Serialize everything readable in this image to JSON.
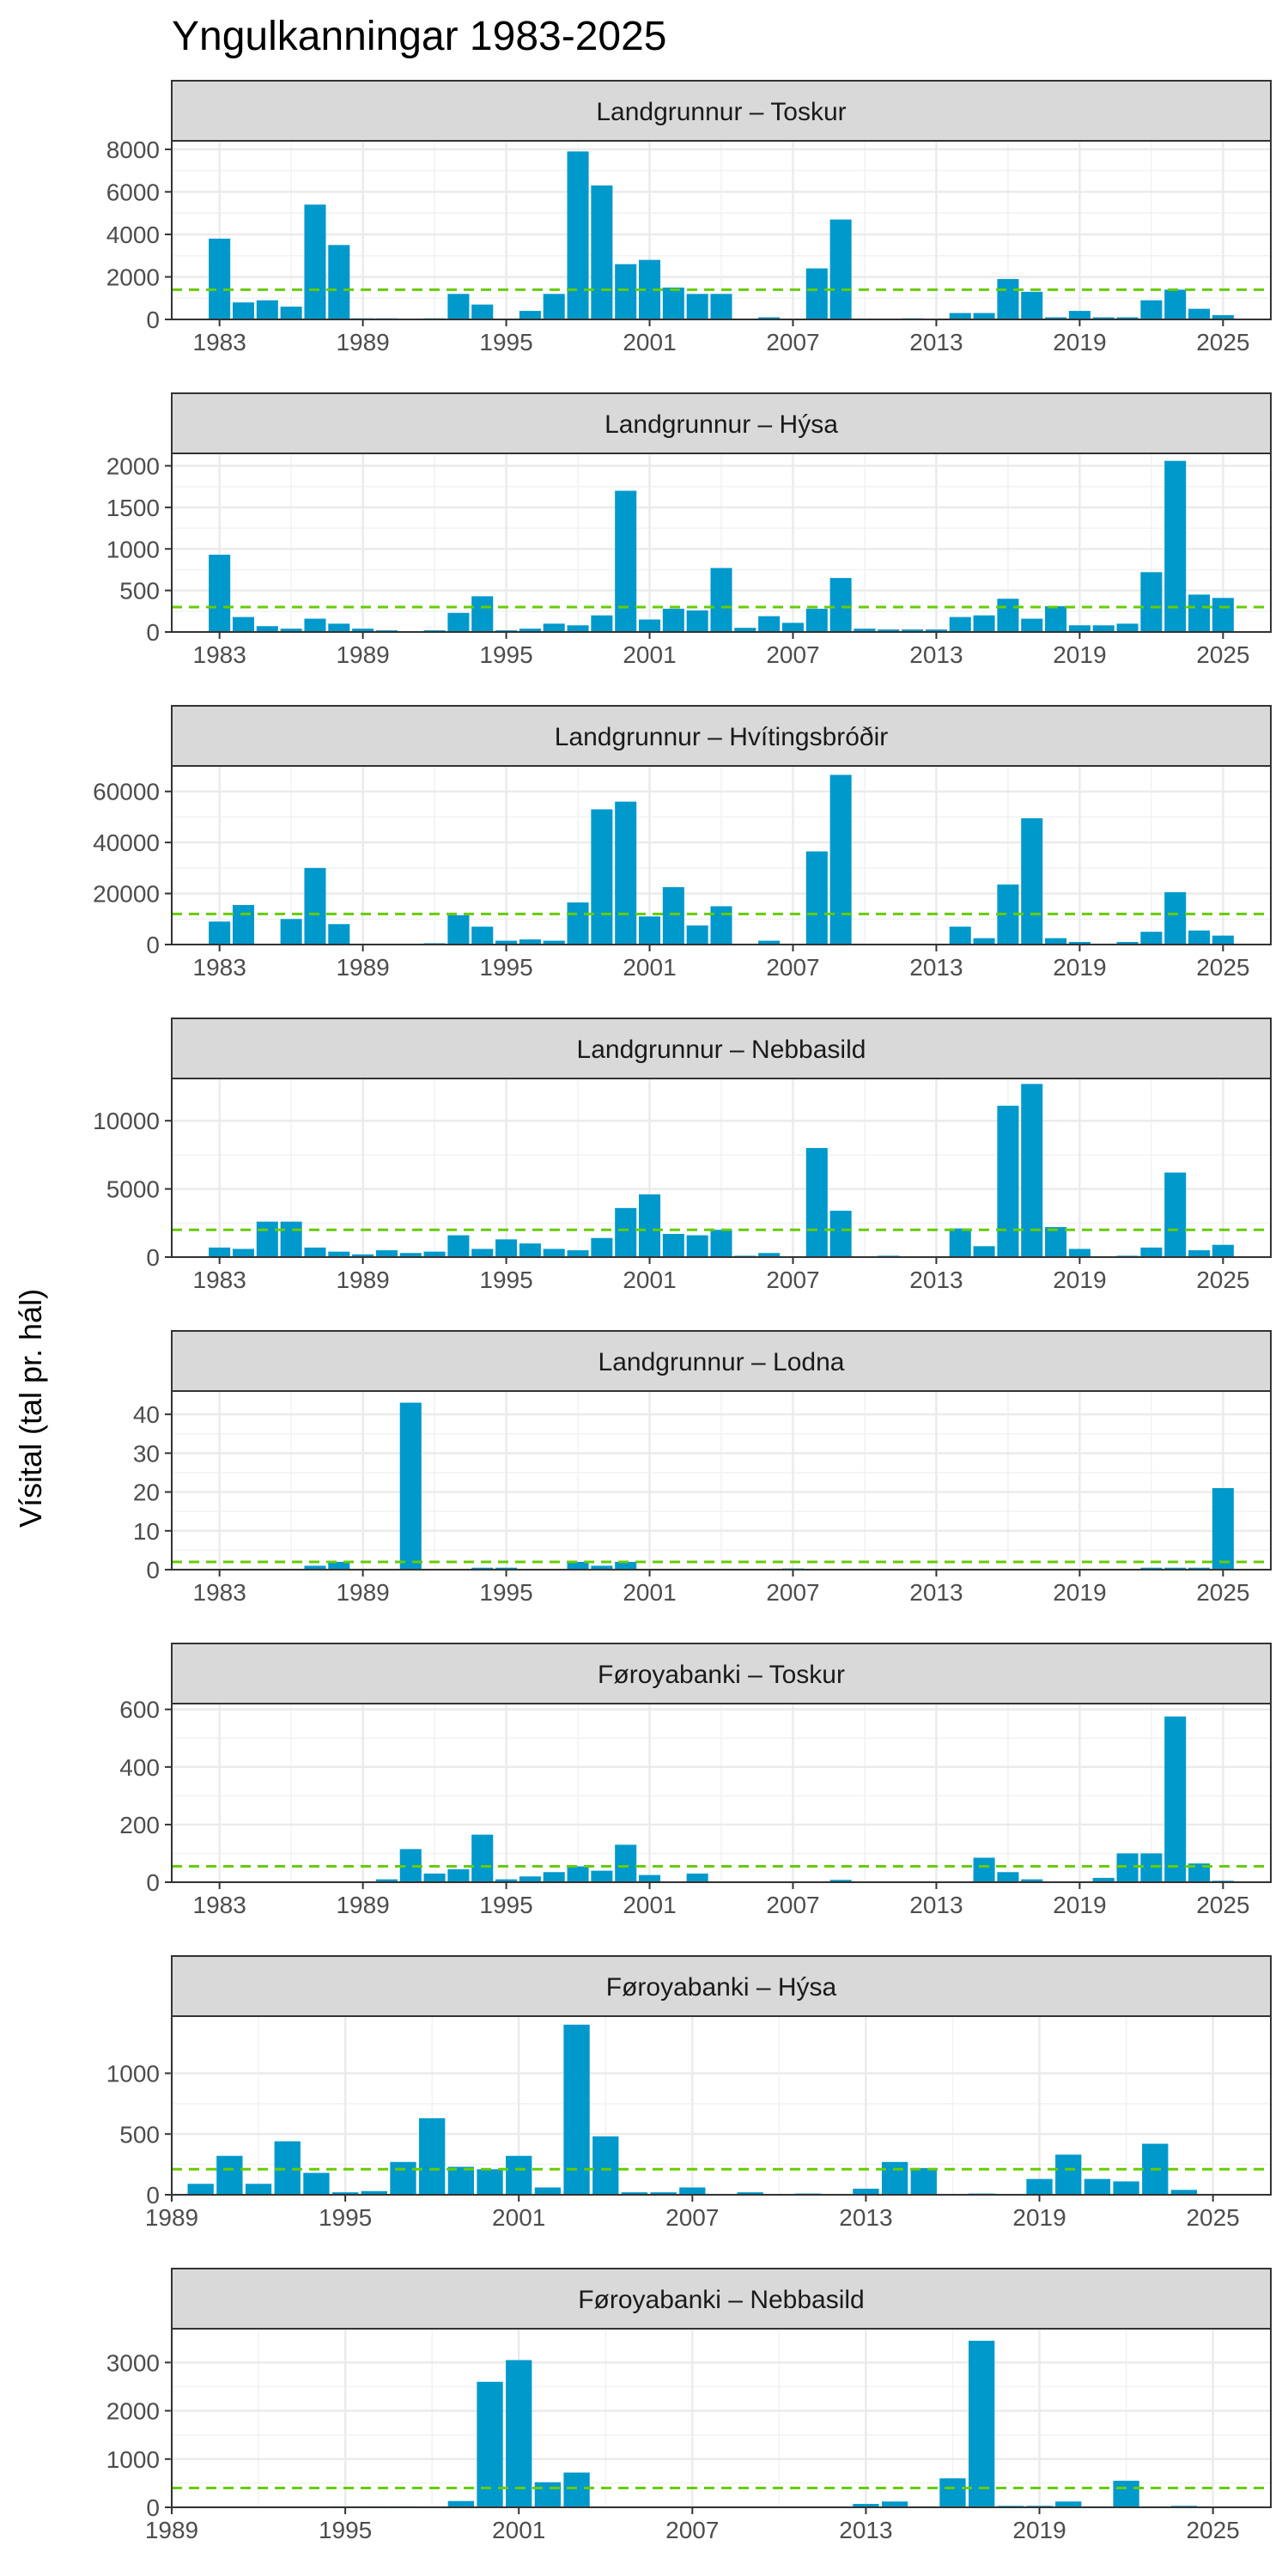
{
  "chart_data": {
    "type": "bar",
    "title": "Yngulkanningar 1983-2025",
    "ylabel": "Vísital (tal pr. hál)",
    "xlabel": "",
    "bar_color": "#0099cc",
    "reference_line_color": "#66cc00",
    "strip_fill": "#d9d9d9",
    "grid": true,
    "panels": [
      {
        "label": "Landgrunnur – Toskur",
        "xlim": [
          1981,
          2027
        ],
        "ylim": [
          0,
          8400
        ],
        "xticks": [
          1983,
          1989,
          1995,
          2001,
          2007,
          2013,
          2019,
          2025
        ],
        "yticks": [
          0,
          2000,
          4000,
          6000,
          8000
        ],
        "reference": 1400,
        "x": [
          1983,
          1984,
          1985,
          1986,
          1987,
          1988,
          1989,
          1990,
          1991,
          1992,
          1993,
          1994,
          1995,
          1996,
          1997,
          1998,
          1999,
          2000,
          2001,
          2002,
          2003,
          2004,
          2005,
          2006,
          2007,
          2008,
          2009,
          2010,
          2011,
          2012,
          2013,
          2014,
          2015,
          2016,
          2017,
          2018,
          2019,
          2020,
          2021,
          2022,
          2023,
          2024,
          2025
        ],
        "values": [
          3800,
          800,
          900,
          600,
          5400,
          3500,
          50,
          50,
          0,
          50,
          1200,
          700,
          0,
          400,
          1200,
          7900,
          6300,
          2600,
          2800,
          1500,
          1200,
          1200,
          0,
          100,
          0,
          2400,
          4700,
          0,
          0,
          50,
          0,
          300,
          300,
          1900,
          1300,
          100,
          400,
          100,
          100,
          900,
          1400,
          500,
          200
        ]
      },
      {
        "label": "Landgrunnur – Hýsa",
        "xlim": [
          1981,
          2027
        ],
        "ylim": [
          0,
          2150
        ],
        "xticks": [
          1983,
          1989,
          1995,
          2001,
          2007,
          2013,
          2019,
          2025
        ],
        "yticks": [
          0,
          500,
          1000,
          1500,
          2000
        ],
        "reference": 300,
        "x": [
          1983,
          1984,
          1985,
          1986,
          1987,
          1988,
          1989,
          1990,
          1991,
          1992,
          1993,
          1994,
          1995,
          1996,
          1997,
          1998,
          1999,
          2000,
          2001,
          2002,
          2003,
          2004,
          2005,
          2006,
          2007,
          2008,
          2009,
          2010,
          2011,
          2012,
          2013,
          2014,
          2015,
          2016,
          2017,
          2018,
          2019,
          2020,
          2021,
          2022,
          2023,
          2024,
          2025
        ],
        "values": [
          930,
          180,
          70,
          40,
          160,
          100,
          40,
          20,
          0,
          20,
          230,
          430,
          20,
          40,
          100,
          80,
          200,
          1700,
          150,
          280,
          260,
          770,
          50,
          190,
          110,
          280,
          650,
          40,
          30,
          30,
          30,
          180,
          200,
          400,
          160,
          310,
          80,
          80,
          100,
          720,
          2060,
          450,
          410
        ]
      },
      {
        "label": "Landgrunnur – Hvítingsbróðir",
        "xlim": [
          1981,
          2027
        ],
        "ylim": [
          0,
          70000
        ],
        "xticks": [
          1983,
          1989,
          1995,
          2001,
          2007,
          2013,
          2019,
          2025
        ],
        "yticks": [
          0,
          20000,
          40000,
          60000
        ],
        "reference": 12000,
        "x": [
          1983,
          1984,
          1985,
          1986,
          1987,
          1988,
          1989,
          1990,
          1991,
          1992,
          1993,
          1994,
          1995,
          1996,
          1997,
          1998,
          1999,
          2000,
          2001,
          2002,
          2003,
          2004,
          2005,
          2006,
          2007,
          2008,
          2009,
          2010,
          2011,
          2012,
          2013,
          2014,
          2015,
          2016,
          2017,
          2018,
          2019,
          2020,
          2021,
          2022,
          2023,
          2024,
          2025
        ],
        "values": [
          9000,
          15500,
          0,
          10000,
          30000,
          8000,
          0,
          0,
          0,
          500,
          11500,
          7000,
          1500,
          2000,
          1500,
          16500,
          53000,
          56000,
          11000,
          22500,
          7500,
          15000,
          0,
          1500,
          0,
          36500,
          66500,
          0,
          0,
          0,
          0,
          7000,
          2500,
          23500,
          49500,
          2500,
          1000,
          0,
          1000,
          5000,
          20500,
          5500,
          3500
        ]
      },
      {
        "label": "Landgrunnur – Nebbasild",
        "xlim": [
          1981,
          2027
        ],
        "ylim": [
          0,
          13100
        ],
        "xticks": [
          1983,
          1989,
          1995,
          2001,
          2007,
          2013,
          2019,
          2025
        ],
        "yticks": [
          0,
          5000,
          10000
        ],
        "reference": 2000,
        "x": [
          1983,
          1984,
          1985,
          1986,
          1987,
          1988,
          1989,
          1990,
          1991,
          1992,
          1993,
          1994,
          1995,
          1996,
          1997,
          1998,
          1999,
          2000,
          2001,
          2002,
          2003,
          2004,
          2005,
          2006,
          2007,
          2008,
          2009,
          2010,
          2011,
          2012,
          2013,
          2014,
          2015,
          2016,
          2017,
          2018,
          2019,
          2020,
          2021,
          2022,
          2023,
          2024,
          2025
        ],
        "values": [
          700,
          600,
          2600,
          2600,
          700,
          400,
          200,
          500,
          300,
          400,
          1600,
          600,
          1300,
          1000,
          600,
          500,
          1400,
          3600,
          4600,
          1700,
          1600,
          2000,
          100,
          300,
          0,
          8000,
          3400,
          0,
          100,
          0,
          0,
          2100,
          800,
          11100,
          12700,
          2200,
          600,
          0,
          100,
          700,
          6200,
          500,
          900
        ]
      },
      {
        "label": "Landgrunnur – Lodna",
        "xlim": [
          1981,
          2027
        ],
        "ylim": [
          0,
          46
        ],
        "xticks": [
          1983,
          1989,
          1995,
          2001,
          2007,
          2013,
          2019,
          2025
        ],
        "yticks": [
          0,
          10,
          20,
          30,
          40
        ],
        "reference": 2,
        "x": [
          1983,
          1984,
          1985,
          1986,
          1987,
          1988,
          1989,
          1990,
          1991,
          1992,
          1993,
          1994,
          1995,
          1996,
          1997,
          1998,
          1999,
          2000,
          2001,
          2002,
          2003,
          2004,
          2005,
          2006,
          2007,
          2008,
          2009,
          2010,
          2011,
          2012,
          2013,
          2014,
          2015,
          2016,
          2017,
          2018,
          2019,
          2020,
          2021,
          2022,
          2023,
          2024,
          2025
        ],
        "values": [
          0,
          0,
          0,
          0,
          1,
          2,
          0,
          0,
          43,
          0,
          0,
          0.5,
          0.5,
          0,
          0,
          2,
          1,
          2,
          0,
          0,
          0,
          0,
          0,
          0,
          0.3,
          0,
          0,
          0,
          0,
          0,
          0,
          0,
          0,
          0,
          0,
          0,
          0,
          0,
          0,
          0.5,
          0.5,
          0.5,
          21
        ]
      },
      {
        "label": "Føroyabanki – Toskur",
        "xlim": [
          1981,
          2027
        ],
        "ylim": [
          0,
          620
        ],
        "xticks": [
          1983,
          1989,
          1995,
          2001,
          2007,
          2013,
          2019,
          2025
        ],
        "yticks": [
          0,
          200,
          400,
          600
        ],
        "reference": 55,
        "x": [
          1990,
          1991,
          1992,
          1993,
          1994,
          1995,
          1996,
          1997,
          1998,
          1999,
          2000,
          2001,
          2002,
          2003,
          2004,
          2005,
          2006,
          2007,
          2008,
          2009,
          2010,
          2011,
          2012,
          2013,
          2014,
          2015,
          2016,
          2017,
          2018,
          2019,
          2020,
          2021,
          2022,
          2023,
          2024,
          2025
        ],
        "values": [
          10,
          115,
          30,
          45,
          165,
          10,
          20,
          35,
          55,
          40,
          130,
          25,
          0,
          30,
          0,
          0,
          0,
          0,
          0,
          8,
          0,
          0,
          0,
          0,
          0,
          85,
          35,
          10,
          0,
          0,
          15,
          100,
          100,
          575,
          65,
          5
        ]
      },
      {
        "label": "Føroyabanki – Hýsa",
        "xlim": [
          1989,
          2027
        ],
        "ylim": [
          0,
          1470
        ],
        "xticks": [
          1989,
          1995,
          2001,
          2007,
          2013,
          2019,
          2025
        ],
        "yticks": [
          0,
          500,
          1000
        ],
        "reference": 210,
        "x": [
          1990,
          1991,
          1992,
          1993,
          1994,
          1995,
          1996,
          1997,
          1998,
          1999,
          2000,
          2001,
          2002,
          2003,
          2004,
          2005,
          2006,
          2007,
          2008,
          2009,
          2010,
          2011,
          2012,
          2013,
          2014,
          2015,
          2016,
          2017,
          2018,
          2019,
          2020,
          2021,
          2022,
          2023,
          2024,
          2025
        ],
        "values": [
          90,
          320,
          90,
          440,
          180,
          20,
          30,
          270,
          630,
          230,
          210,
          320,
          60,
          1400,
          480,
          20,
          20,
          60,
          0,
          20,
          0,
          10,
          0,
          50,
          270,
          220,
          0,
          10,
          0,
          130,
          330,
          130,
          110,
          420,
          40,
          0
        ]
      },
      {
        "label": "Føroyabanki – Nebbasild",
        "xlim": [
          1989,
          2027
        ],
        "ylim": [
          0,
          3700
        ],
        "xticks": [
          1989,
          1995,
          2001,
          2007,
          2013,
          2019,
          2025
        ],
        "yticks": [
          0,
          1000,
          2000,
          3000
        ],
        "reference": 400,
        "x": [
          1995,
          1996,
          1997,
          1998,
          1999,
          2000,
          2001,
          2002,
          2003,
          2004,
          2005,
          2006,
          2007,
          2008,
          2009,
          2010,
          2011,
          2012,
          2013,
          2014,
          2015,
          2016,
          2017,
          2018,
          2019,
          2020,
          2021,
          2022,
          2023,
          2024,
          2025
        ],
        "values": [
          20,
          20,
          20,
          0,
          130,
          2600,
          3050,
          520,
          720,
          0,
          0,
          0,
          0,
          0,
          0,
          0,
          0,
          0,
          70,
          120,
          20,
          600,
          3450,
          30,
          30,
          120,
          20,
          550,
          20,
          30,
          0
        ]
      }
    ]
  }
}
